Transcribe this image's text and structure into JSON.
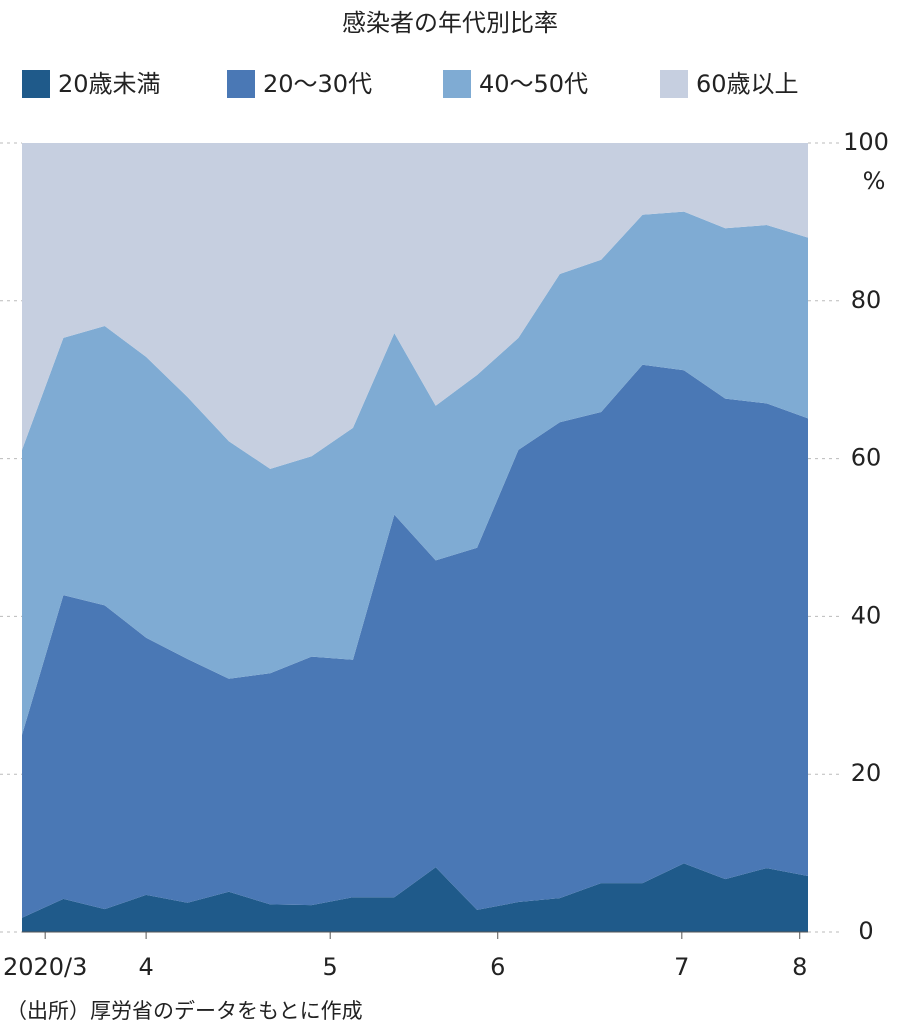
{
  "chart_data": {
    "type": "stacked_area",
    "title": "感染者の年代別比率",
    "ylabel": "%",
    "source": "（出所）厚労省のデータをもとに作成",
    "xlim": [
      0,
      19
    ],
    "xticks": [
      {
        "value": 0.56,
        "label": "2020/3"
      },
      {
        "value": 3,
        "label": "4"
      },
      {
        "value": 7.45,
        "label": "5"
      },
      {
        "value": 11.5,
        "label": "6"
      },
      {
        "value": 15.95,
        "label": "7"
      },
      {
        "value": 18.8,
        "label": "8"
      }
    ],
    "ylim": [
      0,
      100
    ],
    "yticks": [
      0,
      20,
      40,
      60,
      80,
      100
    ],
    "grid": true,
    "series": [
      {
        "name": "20歳未満",
        "color": "#1f5a8a",
        "values": [
          1.8,
          4.2,
          2.9,
          4.7,
          3.7,
          5.1,
          3.5,
          3.4,
          4.4,
          4.4,
          8.2,
          2.8,
          3.8,
          4.3,
          6.2,
          6.2,
          8.7,
          6.7,
          8.1,
          7.1
        ]
      },
      {
        "name": "20〜30代",
        "color": "#4a78b5",
        "values": [
          23.2,
          38.5,
          38.5,
          32.6,
          30.9,
          27.0,
          29.3,
          31.5,
          30.1,
          48.5,
          38.9,
          45.9,
          57.3,
          60.3,
          59.7,
          65.7,
          62.5,
          60.9,
          58.9,
          58.0
        ]
      },
      {
        "name": "40〜50代",
        "color": "#7fabd3",
        "values": [
          36.1,
          32.6,
          35.4,
          35.6,
          33.2,
          30.1,
          25.9,
          25.4,
          29.4,
          23.0,
          19.6,
          21.9,
          14.2,
          18.8,
          19.3,
          19.0,
          20.1,
          21.6,
          22.6,
          22.9
        ]
      },
      {
        "name": "60歳以上",
        "color": "#c6cfe0",
        "values": [
          38.9,
          24.7,
          23.2,
          27.1,
          32.2,
          37.8,
          41.3,
          39.7,
          36.1,
          24.1,
          33.3,
          29.4,
          24.7,
          16.6,
          14.8,
          9.1,
          8.7,
          10.8,
          10.4,
          12.0
        ]
      }
    ]
  }
}
